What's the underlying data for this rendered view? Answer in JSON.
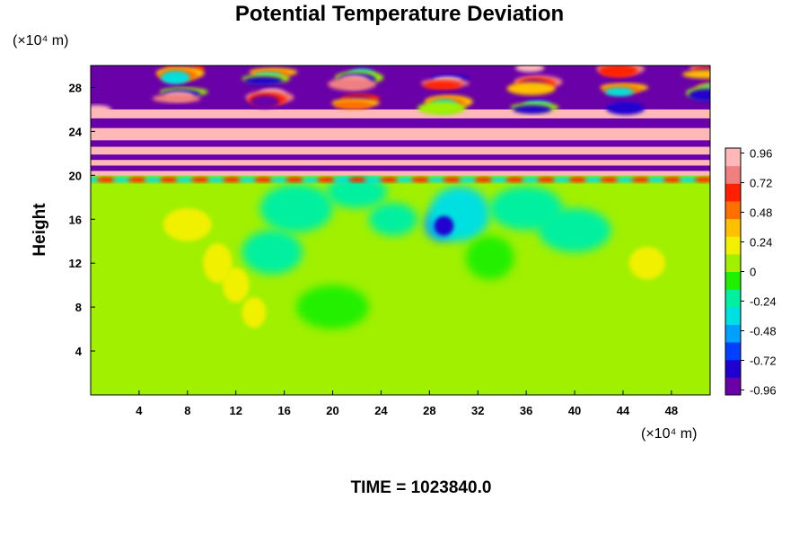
{
  "chart_data": {
    "type": "heatmap",
    "title": "Potential Temperature Deviation",
    "ylabel": "Height",
    "xlabel": "",
    "x_unit_label": "(×10⁴ m)",
    "y_unit_label": "(×10⁴ m)",
    "xlim": [
      0,
      51.2
    ],
    "ylim": [
      0,
      30
    ],
    "x_ticks": [
      4,
      8,
      12,
      16,
      20,
      24,
      28,
      32,
      36,
      40,
      44,
      48
    ],
    "y_ticks": [
      4,
      8,
      12,
      16,
      20,
      24,
      28
    ],
    "colorbar": {
      "min": -1.0,
      "max": 1.0,
      "tick_values": [
        0.96,
        0.72,
        0.48,
        0.24,
        0,
        -0.24,
        -0.48,
        -0.72,
        -0.96
      ],
      "tick_labels": [
        "0.96",
        "0.72",
        "0.48",
        "0.24",
        "0",
        "-0.24",
        "-0.48",
        "-0.72",
        "-0.96"
      ],
      "colors": [
        "#6a00a8",
        "#2000d0",
        "#0040ff",
        "#00a0ff",
        "#00e0e0",
        "#00f0a0",
        "#20f000",
        "#a0f000",
        "#f0f000",
        "#ffc000",
        "#ff7000",
        "#ff2000",
        "#f08080",
        "#ffb8b8"
      ]
    },
    "grid": false,
    "legend": "right",
    "footer": "TIME = 1023840.0"
  }
}
